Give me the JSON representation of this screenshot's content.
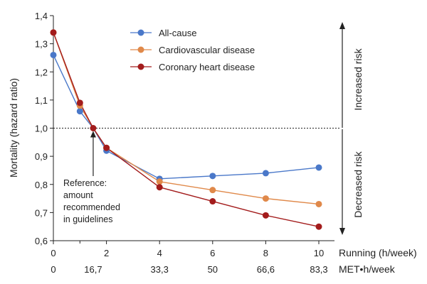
{
  "chart_data": {
    "type": "line",
    "title": "",
    "ylabel": "Mortality (hazard ratio)",
    "xlabel_running": "Running (h/week)",
    "xlabel_met": "MET•h/week",
    "ylim": [
      0.6,
      1.4
    ],
    "xlim": [
      0,
      10
    ],
    "y_ticks": [
      "0,6",
      "0,7",
      "0,8",
      "0,9",
      "1,0",
      "1,1",
      "1,2",
      "1,3",
      "1,4"
    ],
    "x_ticks_running": [
      "0",
      "2",
      "4",
      "6",
      "8",
      "10"
    ],
    "x_ticks_met": [
      "0",
      "16,7",
      "33,3",
      "50",
      "66,6",
      "83,3"
    ],
    "series": [
      {
        "name": "All-cause",
        "color": "#4a78c9",
        "x": [
          0,
          1,
          1.5,
          2,
          4,
          6,
          8,
          10
        ],
        "values": [
          1.26,
          1.06,
          1.0,
          0.92,
          0.82,
          0.83,
          0.84,
          0.86
        ]
      },
      {
        "name": "Cardiovascular disease",
        "color": "#e0894a",
        "x": [
          0,
          1,
          1.5,
          2,
          4,
          6,
          8,
          10
        ],
        "values": [
          1.34,
          1.08,
          1.0,
          0.93,
          0.81,
          0.78,
          0.75,
          0.73
        ]
      },
      {
        "name": "Coronary heart disease",
        "color": "#a31c1c",
        "x": [
          0,
          1,
          1.5,
          2,
          4,
          6,
          8,
          10
        ],
        "values": [
          1.34,
          1.09,
          1.0,
          0.93,
          0.79,
          0.74,
          0.69,
          0.65
        ]
      }
    ],
    "reference_line": 1.0,
    "annotation_lines": [
      "Reference:",
      "amount",
      "recommended",
      "in guidelines"
    ],
    "annotation_x": 1.5,
    "risk_labels": {
      "increased": "Increased risk",
      "decreased": "Decreased risk"
    }
  }
}
